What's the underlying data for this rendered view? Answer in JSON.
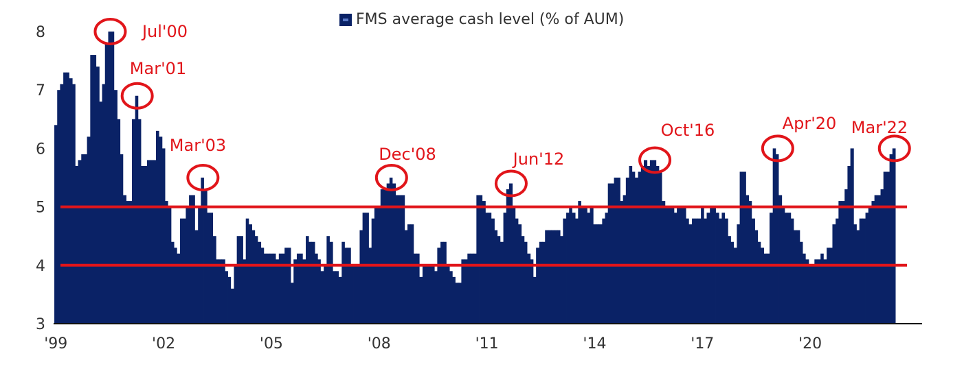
{
  "chart_data": {
    "type": "bar",
    "legend": {
      "label": "FMS average cash level (% of AUM)",
      "position": "top-center"
    },
    "colors": {
      "bars": "#0a2266",
      "reference_lines": "#e1151a",
      "annotations": "#e1151a"
    },
    "ylim": [
      3,
      8
    ],
    "yticks": [
      "3",
      "4",
      "5",
      "6",
      "7",
      "8"
    ],
    "xlim": [
      1998.9,
      2022.35
    ],
    "xticks": [
      {
        "year": 1999,
        "label": "'99"
      },
      {
        "year": 2002,
        "label": "'02"
      },
      {
        "year": 2005,
        "label": "'05"
      },
      {
        "year": 2008,
        "label": "'08"
      },
      {
        "year": 2011,
        "label": "'11"
      },
      {
        "year": 2014,
        "label": "'14"
      },
      {
        "year": 2017,
        "label": "'17"
      },
      {
        "year": 2020,
        "label": "'20"
      }
    ],
    "reference_lines": [
      5,
      4
    ],
    "grid": false,
    "series": [
      {
        "points": [
          [
            1998.92,
            6.4
          ],
          [
            1999.0,
            7.0
          ],
          [
            1999.08,
            7.1
          ],
          [
            1999.17,
            7.3
          ],
          [
            1999.25,
            7.3
          ],
          [
            1999.33,
            7.2
          ],
          [
            1999.42,
            7.1
          ],
          [
            1999.5,
            5.7
          ],
          [
            1999.58,
            5.8
          ],
          [
            1999.67,
            5.9
          ],
          [
            1999.75,
            5.9
          ],
          [
            1999.83,
            6.2
          ],
          [
            1999.92,
            7.6
          ],
          [
            2000.0,
            7.6
          ],
          [
            2000.08,
            7.4
          ],
          [
            2000.17,
            6.8
          ],
          [
            2000.25,
            7.1
          ],
          [
            2000.33,
            7.8
          ],
          [
            2000.42,
            8.0
          ],
          [
            2000.5,
            8.0
          ],
          [
            2000.58,
            7.0
          ],
          [
            2000.67,
            6.5
          ],
          [
            2000.75,
            5.9
          ],
          [
            2000.83,
            5.2
          ],
          [
            2000.92,
            5.1
          ],
          [
            2001.0,
            5.1
          ],
          [
            2001.08,
            6.5
          ],
          [
            2001.17,
            6.9
          ],
          [
            2001.25,
            6.5
          ],
          [
            2001.33,
            5.7
          ],
          [
            2001.42,
            5.7
          ],
          [
            2001.5,
            5.8
          ],
          [
            2001.58,
            5.8
          ],
          [
            2001.67,
            5.8
          ],
          [
            2001.75,
            6.3
          ],
          [
            2001.83,
            6.2
          ],
          [
            2001.92,
            6.0
          ],
          [
            2002.0,
            5.1
          ],
          [
            2002.08,
            5.0
          ],
          [
            2002.17,
            4.4
          ],
          [
            2002.25,
            4.3
          ],
          [
            2002.33,
            4.2
          ],
          [
            2002.42,
            4.8
          ],
          [
            2002.5,
            4.8
          ],
          [
            2002.58,
            5.0
          ],
          [
            2002.67,
            5.2
          ],
          [
            2002.75,
            5.2
          ],
          [
            2002.83,
            4.6
          ],
          [
            2002.92,
            5.0
          ],
          [
            2003.0,
            5.5
          ],
          [
            2003.08,
            5.3
          ],
          [
            2003.17,
            4.9
          ],
          [
            2003.25,
            4.9
          ],
          [
            2003.33,
            4.5
          ],
          [
            2003.42,
            4.1
          ],
          [
            2003.5,
            4.1
          ],
          [
            2003.58,
            4.1
          ],
          [
            2003.67,
            3.9
          ],
          [
            2003.75,
            3.8
          ],
          [
            2003.83,
            3.6
          ],
          [
            2003.92,
            4.0
          ],
          [
            2004.0,
            4.5
          ],
          [
            2004.08,
            4.5
          ],
          [
            2004.17,
            4.1
          ],
          [
            2004.25,
            4.8
          ],
          [
            2004.33,
            4.7
          ],
          [
            2004.42,
            4.6
          ],
          [
            2004.5,
            4.5
          ],
          [
            2004.58,
            4.4
          ],
          [
            2004.67,
            4.3
          ],
          [
            2004.75,
            4.2
          ],
          [
            2004.83,
            4.2
          ],
          [
            2004.92,
            4.2
          ],
          [
            2005.0,
            4.2
          ],
          [
            2005.08,
            4.1
          ],
          [
            2005.17,
            4.2
          ],
          [
            2005.25,
            4.2
          ],
          [
            2005.33,
            4.3
          ],
          [
            2005.42,
            4.3
          ],
          [
            2005.5,
            3.7
          ],
          [
            2005.58,
            4.1
          ],
          [
            2005.67,
            4.2
          ],
          [
            2005.75,
            4.2
          ],
          [
            2005.83,
            4.1
          ],
          [
            2005.92,
            4.5
          ],
          [
            2006.0,
            4.4
          ],
          [
            2006.08,
            4.4
          ],
          [
            2006.17,
            4.2
          ],
          [
            2006.25,
            4.1
          ],
          [
            2006.33,
            3.9
          ],
          [
            2006.42,
            4.0
          ],
          [
            2006.5,
            4.5
          ],
          [
            2006.58,
            4.4
          ],
          [
            2006.67,
            3.9
          ],
          [
            2006.75,
            3.9
          ],
          [
            2006.83,
            3.8
          ],
          [
            2006.92,
            4.4
          ],
          [
            2007.0,
            4.3
          ],
          [
            2007.08,
            4.3
          ],
          [
            2007.17,
            4.0
          ],
          [
            2007.25,
            4.0
          ],
          [
            2007.33,
            4.0
          ],
          [
            2007.42,
            4.6
          ],
          [
            2007.5,
            4.9
          ],
          [
            2007.58,
            4.9
          ],
          [
            2007.67,
            4.3
          ],
          [
            2007.75,
            4.8
          ],
          [
            2007.83,
            5.0
          ],
          [
            2007.92,
            5.0
          ],
          [
            2008.0,
            5.3
          ],
          [
            2008.08,
            5.3
          ],
          [
            2008.17,
            5.4
          ],
          [
            2008.25,
            5.5
          ],
          [
            2008.33,
            5.4
          ],
          [
            2008.42,
            5.2
          ],
          [
            2008.5,
            5.2
          ],
          [
            2008.58,
            5.2
          ],
          [
            2008.67,
            4.6
          ],
          [
            2008.75,
            4.7
          ],
          [
            2008.83,
            4.7
          ],
          [
            2008.92,
            4.2
          ],
          [
            2009.0,
            4.2
          ],
          [
            2009.08,
            3.8
          ],
          [
            2009.17,
            4.0
          ],
          [
            2009.25,
            4.0
          ],
          [
            2009.33,
            4.0
          ],
          [
            2009.42,
            4.0
          ],
          [
            2009.5,
            3.9
          ],
          [
            2009.58,
            4.3
          ],
          [
            2009.67,
            4.4
          ],
          [
            2009.75,
            4.4
          ],
          [
            2009.83,
            4.0
          ],
          [
            2009.92,
            3.9
          ],
          [
            2010.0,
            3.8
          ],
          [
            2010.08,
            3.7
          ],
          [
            2010.17,
            3.7
          ],
          [
            2010.25,
            4.1
          ],
          [
            2010.33,
            4.1
          ],
          [
            2010.42,
            4.2
          ],
          [
            2010.5,
            4.2
          ],
          [
            2010.58,
            4.2
          ],
          [
            2010.67,
            5.2
          ],
          [
            2010.75,
            5.2
          ],
          [
            2010.83,
            5.1
          ],
          [
            2010.92,
            4.9
          ],
          [
            2011.0,
            4.9
          ],
          [
            2011.08,
            4.8
          ],
          [
            2011.17,
            4.6
          ],
          [
            2011.25,
            4.5
          ],
          [
            2011.33,
            4.4
          ],
          [
            2011.42,
            4.9
          ],
          [
            2011.5,
            5.3
          ],
          [
            2011.58,
            5.4
          ],
          [
            2011.67,
            5.0
          ],
          [
            2011.75,
            4.8
          ],
          [
            2011.83,
            4.7
          ],
          [
            2011.92,
            4.5
          ],
          [
            2012.0,
            4.4
          ],
          [
            2012.08,
            4.2
          ],
          [
            2012.17,
            4.1
          ],
          [
            2012.25,
            3.8
          ],
          [
            2012.33,
            4.3
          ],
          [
            2012.42,
            4.4
          ],
          [
            2012.5,
            4.4
          ],
          [
            2012.58,
            4.6
          ],
          [
            2012.67,
            4.6
          ],
          [
            2012.75,
            4.6
          ],
          [
            2012.83,
            4.6
          ],
          [
            2012.92,
            4.6
          ],
          [
            2013.0,
            4.5
          ],
          [
            2013.08,
            4.8
          ],
          [
            2013.17,
            4.9
          ],
          [
            2013.25,
            5.0
          ],
          [
            2013.33,
            4.9
          ],
          [
            2013.42,
            4.8
          ],
          [
            2013.5,
            5.1
          ],
          [
            2013.58,
            5.0
          ],
          [
            2013.67,
            5.0
          ],
          [
            2013.75,
            4.9
          ],
          [
            2013.83,
            5.0
          ],
          [
            2013.92,
            4.7
          ],
          [
            2014.0,
            4.7
          ],
          [
            2014.08,
            4.7
          ],
          [
            2014.17,
            4.8
          ],
          [
            2014.25,
            4.9
          ],
          [
            2014.33,
            5.4
          ],
          [
            2014.42,
            5.4
          ],
          [
            2014.5,
            5.5
          ],
          [
            2014.58,
            5.5
          ],
          [
            2014.67,
            5.1
          ],
          [
            2014.75,
            5.2
          ],
          [
            2014.83,
            5.5
          ],
          [
            2014.92,
            5.7
          ],
          [
            2015.0,
            5.6
          ],
          [
            2015.08,
            5.5
          ],
          [
            2015.17,
            5.6
          ],
          [
            2015.25,
            5.7
          ],
          [
            2015.33,
            5.8
          ],
          [
            2015.42,
            5.7
          ],
          [
            2015.5,
            5.8
          ],
          [
            2015.58,
            5.8
          ],
          [
            2015.67,
            5.7
          ],
          [
            2015.75,
            5.6
          ],
          [
            2015.83,
            5.1
          ],
          [
            2015.92,
            5.0
          ],
          [
            2016.0,
            5.0
          ],
          [
            2016.08,
            5.0
          ],
          [
            2016.17,
            4.9
          ],
          [
            2016.25,
            5.0
          ],
          [
            2016.33,
            5.0
          ],
          [
            2016.42,
            5.0
          ],
          [
            2016.5,
            4.8
          ],
          [
            2016.58,
            4.7
          ],
          [
            2016.67,
            4.8
          ],
          [
            2016.75,
            4.8
          ],
          [
            2016.83,
            4.8
          ],
          [
            2016.92,
            5.0
          ],
          [
            2017.0,
            4.8
          ],
          [
            2017.08,
            4.9
          ],
          [
            2017.17,
            5.0
          ],
          [
            2017.25,
            5.0
          ],
          [
            2017.33,
            4.9
          ],
          [
            2017.42,
            4.8
          ],
          [
            2017.5,
            4.9
          ],
          [
            2017.58,
            4.8
          ],
          [
            2017.67,
            4.5
          ],
          [
            2017.75,
            4.4
          ],
          [
            2017.83,
            4.3
          ],
          [
            2017.92,
            4.7
          ],
          [
            2018.0,
            5.6
          ],
          [
            2018.08,
            5.6
          ],
          [
            2018.17,
            5.2
          ],
          [
            2018.25,
            5.1
          ],
          [
            2018.33,
            4.8
          ],
          [
            2018.42,
            4.6
          ],
          [
            2018.5,
            4.4
          ],
          [
            2018.58,
            4.3
          ],
          [
            2018.67,
            4.2
          ],
          [
            2018.75,
            4.2
          ],
          [
            2018.83,
            4.9
          ],
          [
            2018.92,
            6.0
          ],
          [
            2019.0,
            5.9
          ],
          [
            2019.08,
            5.2
          ],
          [
            2019.17,
            5.0
          ],
          [
            2019.25,
            4.9
          ],
          [
            2019.33,
            4.9
          ],
          [
            2019.42,
            4.8
          ],
          [
            2019.5,
            4.6
          ],
          [
            2019.58,
            4.6
          ],
          [
            2019.67,
            4.4
          ],
          [
            2019.75,
            4.2
          ],
          [
            2019.83,
            4.1
          ],
          [
            2019.92,
            4.0
          ],
          [
            2020.0,
            4.0
          ],
          [
            2020.08,
            4.1
          ],
          [
            2020.17,
            4.1
          ],
          [
            2020.25,
            4.2
          ],
          [
            2020.33,
            4.1
          ],
          [
            2020.42,
            4.3
          ],
          [
            2020.5,
            4.3
          ],
          [
            2020.58,
            4.7
          ],
          [
            2020.67,
            4.8
          ],
          [
            2020.75,
            5.1
          ],
          [
            2020.83,
            5.1
          ],
          [
            2020.92,
            5.3
          ],
          [
            2021.0,
            5.7
          ],
          [
            2021.08,
            6.0
          ],
          [
            2021.17,
            4.7
          ],
          [
            2021.25,
            4.6
          ],
          [
            2021.33,
            4.8
          ],
          [
            2021.42,
            4.8
          ],
          [
            2021.5,
            4.9
          ],
          [
            2021.58,
            5.0
          ],
          [
            2021.67,
            5.1
          ],
          [
            2021.75,
            5.2
          ],
          [
            2021.83,
            5.2
          ],
          [
            2021.92,
            5.3
          ],
          [
            2022.0,
            5.6
          ],
          [
            2022.08,
            5.6
          ],
          [
            2022.17,
            5.9
          ],
          [
            2022.25,
            6.0
          ]
        ]
      }
    ],
    "annotations": [
      {
        "label": "Jul'00",
        "year": 2000.42,
        "value": 8.0
      },
      {
        "label": "Mar'01",
        "year": 2001.17,
        "value": 6.9
      },
      {
        "label": "Mar'03",
        "year": 2003.0,
        "value": 5.5
      },
      {
        "label": "Dec'08",
        "year": 2008.25,
        "value": 5.5
      },
      {
        "label": "Jun'12",
        "year": 2011.58,
        "value": 5.4
      },
      {
        "label": "Oct'16",
        "year": 2015.58,
        "value": 5.8
      },
      {
        "label": "Apr'20",
        "year": 2019.0,
        "value": 6.0
      },
      {
        "label": "Mar'22",
        "year": 2022.25,
        "value": 6.0
      }
    ]
  }
}
